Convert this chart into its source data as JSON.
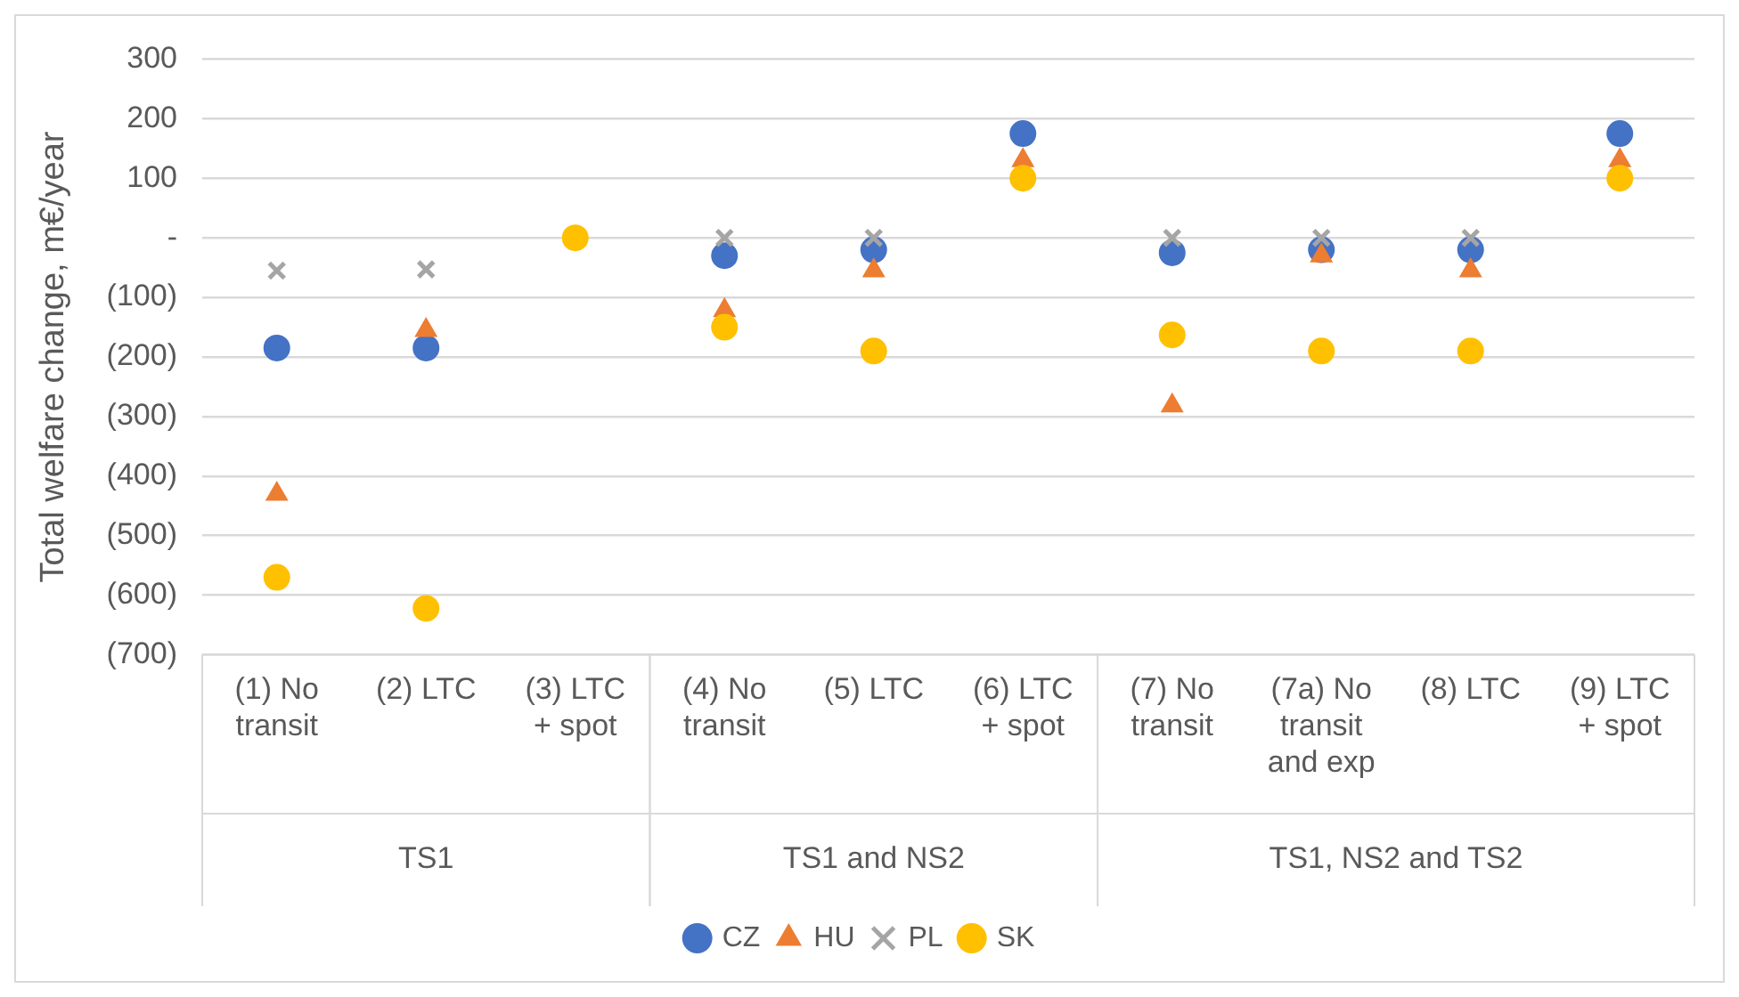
{
  "chart_data": {
    "type": "scatter",
    "ylabel": "Total welfare change, m€/year",
    "categories": [
      "(1) No transit",
      "(2) LTC",
      "(3) LTC + spot",
      "(4) No transit",
      "(5) LTC",
      "(6) LTC + spot",
      "(7) No transit",
      "(7a) No transit and exp",
      "(8) LTC",
      "(9) LTC + spot"
    ],
    "series": [
      {
        "name": "CZ",
        "color": "#4472c4",
        "marker": "circle",
        "values": [
          -185,
          -185,
          null,
          -30,
          -20,
          175,
          -25,
          -20,
          -20,
          175
        ]
      },
      {
        "name": "HU",
        "color": "#ed7d31",
        "marker": "triangle",
        "values": [
          -430,
          -155,
          null,
          -122,
          -55,
          130,
          -282,
          -30,
          -55,
          130
        ]
      },
      {
        "name": "PL",
        "color": "#a5a5a5",
        "marker": "cross",
        "values": [
          -55,
          -53,
          null,
          0,
          0,
          null,
          0,
          0,
          0,
          null
        ]
      },
      {
        "name": "SK",
        "color": "#ffc000",
        "marker": "circle",
        "values": [
          -570,
          -622,
          0,
          -150,
          -190,
          100,
          -163,
          -190,
          -190,
          100
        ]
      }
    ],
    "annotations": [
      "TS1",
      "TS1 and NS2",
      "TS1, NS2 and TS2"
    ],
    "ylim": [
      -700,
      300
    ],
    "yticks": [
      300,
      200,
      100,
      {
        "value": 0,
        "label": "-"
      },
      {
        "value": -100,
        "label": "(100)"
      },
      {
        "value": -200,
        "label": "(200)"
      },
      {
        "value": -300,
        "label": "(300)"
      },
      {
        "value": -400,
        "label": "(400)"
      },
      {
        "value": -500,
        "label": "(500)"
      },
      {
        "value": -600,
        "label": "(600)"
      },
      {
        "value": -700,
        "label": "(700)"
      }
    ],
    "grid": "y",
    "legend": "bottom"
  }
}
